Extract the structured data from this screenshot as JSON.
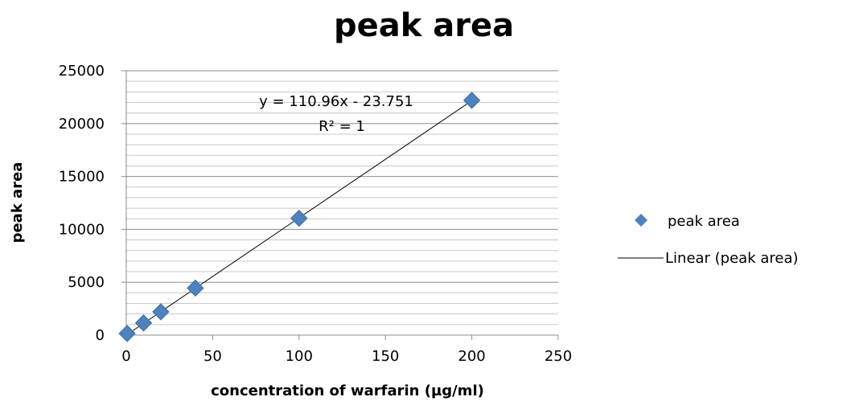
{
  "chart_data": {
    "type": "scatter",
    "title": "peak area",
    "xlabel": "concentration of warfarin (µg/ml)",
    "ylabel": "peak area",
    "xlim": [
      0,
      250
    ],
    "ylim": [
      0,
      25000
    ],
    "x_ticks": [
      0,
      50,
      100,
      150,
      200,
      250
    ],
    "y_ticks": [
      0,
      5000,
      10000,
      15000,
      20000,
      25000
    ],
    "y_minor_step": 1000,
    "grid": true,
    "legend_position": "right",
    "marker_color": "#4f81bd",
    "trend_color": "#000000",
    "series": [
      {
        "name": "peak area",
        "x": [
          0.5,
          10,
          20,
          40,
          100,
          200
        ],
        "y": [
          150,
          1150,
          2200,
          4450,
          11050,
          22200
        ]
      }
    ],
    "trendline": {
      "name": "Linear (peak area)",
      "slope": 110.96,
      "intercept": -23.751
    },
    "annotations": {
      "equation": "y = 110.96x - 23.751",
      "r_squared": "R² = 1"
    }
  }
}
